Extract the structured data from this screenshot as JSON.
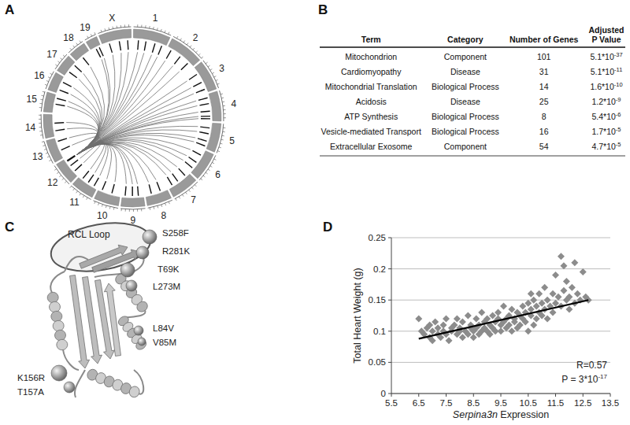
{
  "letters": [
    "A",
    "B",
    "C",
    "D"
  ],
  "circos": {
    "chromosomes": [
      {
        "label": "1",
        "size": 195
      },
      {
        "label": "2",
        "size": 182
      },
      {
        "label": "3",
        "size": 160
      },
      {
        "label": "4",
        "size": 157
      },
      {
        "label": "5",
        "size": 152
      },
      {
        "label": "6",
        "size": 150
      },
      {
        "label": "7",
        "size": 145
      },
      {
        "label": "8",
        "size": 130
      },
      {
        "label": "9",
        "size": 125
      },
      {
        "label": "10",
        "size": 131
      },
      {
        "label": "11",
        "size": 122
      },
      {
        "label": "12",
        "size": 120
      },
      {
        "label": "13",
        "size": 121
      },
      {
        "label": "14",
        "size": 125
      },
      {
        "label": "15",
        "size": 104
      },
      {
        "label": "16",
        "size": 98
      },
      {
        "label": "17",
        "size": 95
      },
      {
        "label": "18",
        "size": 91
      },
      {
        "label": "19",
        "size": 61
      },
      {
        "label": "X",
        "size": 171
      }
    ],
    "source": {
      "chrom": "12",
      "pos": 104
    },
    "targets": [
      [
        "1",
        30
      ],
      [
        "1",
        75
      ],
      [
        "1",
        130
      ],
      [
        "1",
        172
      ],
      [
        "2",
        25
      ],
      [
        "2",
        90
      ],
      [
        "2",
        150
      ],
      [
        "3",
        40
      ],
      [
        "3",
        95
      ],
      [
        "3",
        140
      ],
      [
        "4",
        20
      ],
      [
        "4",
        55
      ],
      [
        "4",
        100
      ],
      [
        "4",
        130
      ],
      [
        "4",
        145
      ],
      [
        "5",
        30
      ],
      [
        "5",
        65
      ],
      [
        "5",
        110
      ],
      [
        "5",
        140
      ],
      [
        "6",
        35
      ],
      [
        "6",
        85
      ],
      [
        "6",
        125
      ],
      [
        "7",
        25
      ],
      [
        "7",
        80
      ],
      [
        "7",
        120
      ],
      [
        "8",
        40
      ],
      [
        "8",
        95
      ],
      [
        "9",
        30
      ],
      [
        "9",
        65
      ],
      [
        "9",
        108
      ],
      [
        "10",
        50
      ],
      [
        "10",
        110
      ],
      [
        "11",
        20
      ],
      [
        "11",
        60
      ],
      [
        "11",
        100
      ],
      [
        "12",
        30
      ],
      [
        "12",
        70
      ],
      [
        "13",
        45
      ],
      [
        "13",
        100
      ],
      [
        "14",
        30
      ],
      [
        "14",
        75
      ],
      [
        "15",
        50
      ],
      [
        "15",
        85
      ],
      [
        "16",
        20
      ],
      [
        "16",
        70
      ],
      [
        "17",
        30
      ],
      [
        "17",
        80
      ],
      [
        "18",
        40
      ],
      [
        "19",
        30
      ],
      [
        "19",
        50
      ],
      [
        "X",
        40
      ],
      [
        "X",
        100
      ],
      [
        "X",
        150
      ]
    ]
  },
  "table": {
    "columns": [
      "Term",
      "Category",
      "Number of Genes",
      "Adjusted P Value"
    ],
    "rows": [
      [
        "Mitochondrion",
        "Component",
        101,
        [
          "5.1*10",
          "-37"
        ]
      ],
      [
        "Cardiomyopathy",
        "Disease",
        31,
        [
          "5.1*10",
          "-11"
        ]
      ],
      [
        "Mitochondrial Translation",
        "Biological Process",
        14,
        [
          "1.6*10",
          "-10"
        ]
      ],
      [
        "Acidosis",
        "Disease",
        25,
        [
          "1.2*10",
          "-9"
        ]
      ],
      [
        "ATP Synthesis",
        "Biological Process",
        8,
        [
          "5.4*10",
          "-6"
        ]
      ],
      [
        "Vesicle-mediated Transport",
        "Biological Process",
        16,
        [
          "1.7*10",
          "-5"
        ]
      ],
      [
        "Extracellular Exosome",
        "Component",
        54,
        [
          "4.7*10",
          "-5"
        ]
      ]
    ]
  },
  "structure": {
    "loop_label": "RCL Loop",
    "mutations": [
      "S258F",
      "R281K",
      "T69K",
      "L273M",
      "L84V",
      "V85M",
      "K156R",
      "T157A"
    ]
  },
  "chart_data": {
    "type": "scatter",
    "xlabel": "Serpina3n Expression",
    "ylabel": "Total Heart Weight (g)",
    "xlim": [
      5.5,
      13.5
    ],
    "ylim": [
      0,
      0.25
    ],
    "xticks": [
      5.5,
      6.5,
      7.5,
      8.5,
      9.5,
      10.5,
      11.5,
      12.5,
      13.5
    ],
    "yticks": [
      0,
      0.05,
      0.1,
      0.15,
      0.2,
      0.25
    ],
    "grid": true,
    "color": "#8c8c8c",
    "marker": "diamond",
    "x": [
      6.5,
      6.6,
      6.7,
      6.8,
      6.9,
      6.9,
      7.0,
      7.0,
      7.1,
      7.2,
      7.2,
      7.3,
      7.4,
      7.4,
      7.5,
      7.5,
      7.6,
      7.7,
      7.7,
      7.8,
      7.9,
      7.9,
      8.0,
      8.0,
      8.1,
      8.1,
      8.2,
      8.3,
      8.3,
      8.4,
      8.4,
      8.5,
      8.5,
      8.6,
      8.6,
      8.7,
      8.7,
      8.8,
      8.8,
      8.9,
      8.9,
      9.0,
      9.0,
      9.1,
      9.1,
      9.2,
      9.2,
      9.3,
      9.3,
      9.4,
      9.4,
      9.5,
      9.5,
      9.6,
      9.6,
      9.7,
      9.7,
      9.8,
      9.8,
      9.9,
      9.9,
      10.0,
      10.0,
      10.1,
      10.1,
      10.2,
      10.2,
      10.3,
      10.3,
      10.4,
      10.4,
      10.5,
      10.5,
      10.6,
      10.6,
      10.7,
      10.7,
      10.8,
      10.8,
      10.9,
      10.9,
      11.0,
      11.0,
      11.1,
      11.1,
      11.2,
      11.2,
      11.3,
      11.4,
      11.4,
      11.5,
      11.5,
      11.6,
      11.7,
      11.7,
      11.8,
      11.9,
      11.9,
      12.0,
      12.0,
      12.1,
      12.2,
      12.2,
      12.3,
      12.4,
      12.5,
      12.6,
      12.7,
      11.8,
      10.6
    ],
    "values": [
      0.12,
      0.1,
      0.095,
      0.105,
      0.09,
      0.11,
      0.1,
      0.085,
      0.115,
      0.095,
      0.105,
      0.09,
      0.11,
      0.1,
      0.095,
      0.12,
      0.085,
      0.105,
      0.1,
      0.11,
      0.095,
      0.12,
      0.1,
      0.105,
      0.09,
      0.115,
      0.1,
      0.125,
      0.095,
      0.105,
      0.11,
      0.1,
      0.09,
      0.12,
      0.105,
      0.095,
      0.11,
      0.1,
      0.13,
      0.105,
      0.115,
      0.1,
      0.12,
      0.095,
      0.11,
      0.125,
      0.105,
      0.1,
      0.115,
      0.12,
      0.13,
      0.11,
      0.1,
      0.14,
      0.115,
      0.105,
      0.12,
      0.11,
      0.125,
      0.1,
      0.135,
      0.115,
      0.12,
      0.13,
      0.105,
      0.11,
      0.125,
      0.14,
      0.12,
      0.115,
      0.13,
      0.1,
      0.145,
      0.125,
      0.135,
      0.11,
      0.15,
      0.12,
      0.14,
      0.13,
      0.16,
      0.125,
      0.145,
      0.135,
      0.17,
      0.12,
      0.15,
      0.14,
      0.16,
      0.13,
      0.19,
      0.145,
      0.155,
      0.22,
      0.14,
      0.165,
      0.15,
      0.18,
      0.135,
      0.155,
      0.17,
      0.145,
      0.21,
      0.16,
      0.15,
      0.195,
      0.155,
      0.15,
      0.205,
      0.16
    ],
    "fit": {
      "x": [
        6.5,
        12.7
      ],
      "y": [
        0.088,
        0.15
      ]
    },
    "annotations": [
      "R=0.57",
      [
        "P = 3*10",
        "-17"
      ]
    ]
  }
}
